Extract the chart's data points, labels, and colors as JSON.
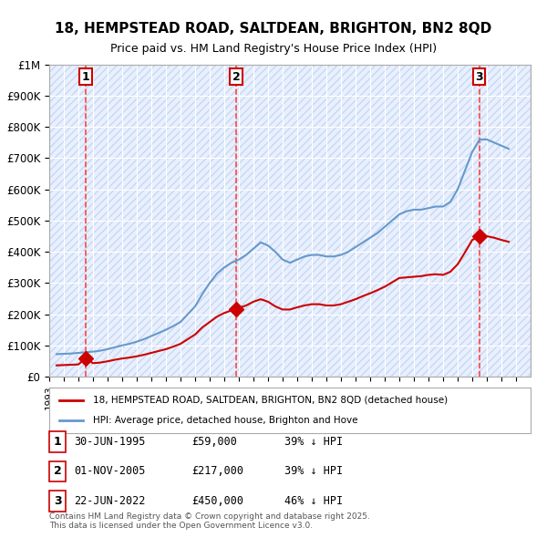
{
  "title": "18, HEMPSTEAD ROAD, SALTDEAN, BRIGHTON, BN2 8QD",
  "subtitle": "Price paid vs. HM Land Registry's House Price Index (HPI)",
  "ylabel": "",
  "background_color": "#ffffff",
  "plot_bg_color": "#e8f0ff",
  "hatch_color": "#c8d8f0",
  "grid_color": "#ffffff",
  "red_line_color": "#cc0000",
  "blue_line_color": "#6699cc",
  "sale_marker_color": "#cc0000",
  "dashed_line_color": "#ff4444",
  "legend_label_red": "18, HEMPSTEAD ROAD, SALTDEAN, BRIGHTON, BN2 8QD (detached house)",
  "legend_label_blue": "HPI: Average price, detached house, Brighton and Hove",
  "sales": [
    {
      "num": 1,
      "date_x": 1995.5,
      "price": 59000,
      "label": "30-JUN-1995",
      "price_label": "£59,000",
      "hpi_label": "39% ↓ HPI"
    },
    {
      "num": 2,
      "date_x": 2005.83,
      "price": 217000,
      "label": "01-NOV-2005",
      "price_label": "£217,000",
      "hpi_label": "39% ↓ HPI"
    },
    {
      "num": 3,
      "date_x": 2022.47,
      "price": 450000,
      "label": "22-JUN-2022",
      "price_label": "£450,000",
      "hpi_label": "46% ↓ HPI"
    }
  ],
  "yticks": [
    0,
    100000,
    200000,
    300000,
    400000,
    500000,
    600000,
    700000,
    800000,
    900000,
    1000000
  ],
  "ytick_labels": [
    "£0",
    "£100K",
    "£200K",
    "£300K",
    "£400K",
    "£500K",
    "£600K",
    "£700K",
    "£800K",
    "£900K",
    "£1M"
  ],
  "xlim": [
    1993,
    2026
  ],
  "ylim": [
    0,
    1000000
  ],
  "footer": "Contains HM Land Registry data © Crown copyright and database right 2025.\nThis data is licensed under the Open Government Licence v3.0.",
  "hpi_data": {
    "years": [
      1993.5,
      1994.0,
      1994.5,
      1995.0,
      1995.5,
      1996.0,
      1996.5,
      1997.0,
      1997.5,
      1998.0,
      1998.5,
      1999.0,
      1999.5,
      2000.0,
      2000.5,
      2001.0,
      2001.5,
      2002.0,
      2002.5,
      2003.0,
      2003.5,
      2004.0,
      2004.5,
      2005.0,
      2005.5,
      2006.0,
      2006.5,
      2007.0,
      2007.5,
      2008.0,
      2008.5,
      2009.0,
      2009.5,
      2010.0,
      2010.5,
      2011.0,
      2011.5,
      2012.0,
      2012.5,
      2013.0,
      2013.5,
      2014.0,
      2014.5,
      2015.0,
      2015.5,
      2016.0,
      2016.5,
      2017.0,
      2017.5,
      2018.0,
      2018.5,
      2019.0,
      2019.5,
      2020.0,
      2020.5,
      2021.0,
      2021.5,
      2022.0,
      2022.5,
      2023.0,
      2023.5,
      2024.0,
      2024.5
    ],
    "values": [
      72000,
      73000,
      74000,
      76000,
      78000,
      80000,
      83000,
      88000,
      94000,
      100000,
      105000,
      112000,
      120000,
      130000,
      140000,
      150000,
      162000,
      175000,
      200000,
      225000,
      265000,
      300000,
      330000,
      350000,
      365000,
      375000,
      390000,
      410000,
      430000,
      420000,
      400000,
      375000,
      365000,
      375000,
      385000,
      390000,
      390000,
      385000,
      385000,
      390000,
      400000,
      415000,
      430000,
      445000,
      460000,
      480000,
      500000,
      520000,
      530000,
      535000,
      535000,
      540000,
      545000,
      545000,
      560000,
      600000,
      660000,
      720000,
      760000,
      760000,
      750000,
      740000,
      730000
    ]
  },
  "red_data": {
    "years": [
      1993.5,
      1994.0,
      1994.5,
      1995.0,
      1995.5,
      1996.0,
      1996.5,
      1997.0,
      1997.5,
      1998.0,
      1998.5,
      1999.0,
      1999.5,
      2000.0,
      2000.5,
      2001.0,
      2001.5,
      2002.0,
      2002.5,
      2003.0,
      2003.5,
      2004.0,
      2004.5,
      2005.0,
      2005.5,
      2005.83,
      2006.0,
      2006.5,
      2007.0,
      2007.5,
      2008.0,
      2008.5,
      2009.0,
      2009.5,
      2010.0,
      2010.5,
      2011.0,
      2011.5,
      2012.0,
      2012.5,
      2013.0,
      2013.5,
      2014.0,
      2014.5,
      2015.0,
      2015.5,
      2016.0,
      2016.5,
      2017.0,
      2017.5,
      2018.0,
      2018.5,
      2019.0,
      2019.5,
      2020.0,
      2020.5,
      2021.0,
      2021.5,
      2022.0,
      2022.47,
      2022.5,
      2023.0,
      2023.5,
      2024.0,
      2024.5
    ],
    "values": [
      36000,
      37000,
      38000,
      39000,
      59000,
      43000,
      45000,
      49000,
      54000,
      58000,
      61000,
      65000,
      70000,
      76000,
      82000,
      88000,
      96000,
      105000,
      120000,
      135000,
      158000,
      175000,
      192000,
      204000,
      212000,
      217000,
      220000,
      228000,
      240000,
      248000,
      240000,
      225000,
      215000,
      215000,
      222000,
      228000,
      232000,
      232000,
      228000,
      228000,
      232000,
      240000,
      248000,
      258000,
      267000,
      277000,
      288000,
      302000,
      316000,
      318000,
      320000,
      322000,
      326000,
      328000,
      326000,
      336000,
      360000,
      398000,
      438000,
      450000,
      452000,
      450000,
      445000,
      438000,
      432000
    ]
  }
}
